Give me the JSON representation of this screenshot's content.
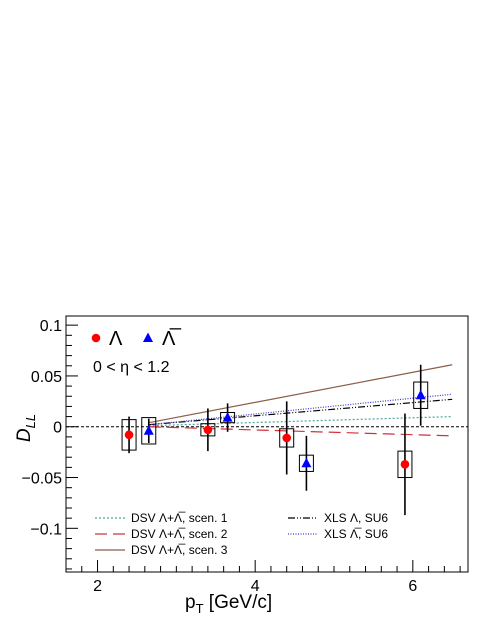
{
  "chart_data": {
    "type": "scatter",
    "title": "",
    "xlabel": "p_T [GeV/c]",
    "xlabel_main": "p",
    "xlabel_sub": "T",
    "xlabel_rest": " [GeV/c]",
    "ylabel": "D_LL",
    "ylabel_main": "D",
    "ylabel_sub": "LL",
    "xlim": [
      1.6,
      6.7
    ],
    "ylim": [
      -0.143,
      0.109
    ],
    "xticks": [
      {
        "v": 2,
        "label": "2"
      },
      {
        "v": 4,
        "label": "4"
      },
      {
        "v": 6,
        "label": "6"
      }
    ],
    "yticks": [
      {
        "v": 0.1,
        "label": "0.1"
      },
      {
        "v": 0.05,
        "label": "0.05"
      },
      {
        "v": 0,
        "label": "0"
      },
      {
        "v": -0.05,
        "label": "−0.05"
      },
      {
        "v": -0.1,
        "label": "−0.1"
      }
    ],
    "zero_line": true,
    "annotation": "0 < η < 1.2",
    "series": [
      {
        "name": "Λ",
        "marker": "circle",
        "color": "#ff0000",
        "points": [
          {
            "x": 2.4,
            "y": -0.008,
            "err": 0.018,
            "sys": 0.015
          },
          {
            "x": 3.4,
            "y": -0.003,
            "err": 0.021,
            "sys": 0.006
          },
          {
            "x": 4.4,
            "y": -0.011,
            "err": 0.036,
            "sys": 0.009
          },
          {
            "x": 5.9,
            "y": -0.037,
            "err": 0.05,
            "sys": 0.013
          }
        ]
      },
      {
        "name": "Λ̅",
        "marker": "triangle",
        "color": "#0000ff",
        "points": [
          {
            "x": 2.65,
            "y": -0.004,
            "err": 0.012,
            "sys": 0.013
          },
          {
            "x": 3.65,
            "y": 0.009,
            "err": 0.014,
            "sys": 0.005
          },
          {
            "x": 4.65,
            "y": -0.036,
            "err": 0.027,
            "sys": 0.008
          },
          {
            "x": 6.1,
            "y": 0.031,
            "err": 0.03,
            "sys": 0.013
          }
        ]
      }
    ],
    "curves": [
      {
        "name": "DSV Λ+Λ̅, scen. 1",
        "color": "#4aa89c",
        "dash": "2,2",
        "x": [
          2.65,
          6.5
        ],
        "y": [
          0.001,
          0.01
        ]
      },
      {
        "name": "DSV Λ+Λ̅, scen. 2",
        "color": "#d4303c",
        "dash": "12,6",
        "x": [
          2.65,
          6.5
        ],
        "y": [
          0.0,
          -0.009
        ]
      },
      {
        "name": "DSV Λ+Λ̅, scen. 3",
        "color": "#8b5e4a",
        "dash": "",
        "x": [
          2.65,
          6.5
        ],
        "y": [
          0.004,
          0.061
        ]
      },
      {
        "name": "XLS Λ, SU6",
        "color": "#000000",
        "dash": "7,2,1,2,1,2",
        "x": [
          2.65,
          6.5
        ],
        "y": [
          0.002,
          0.027
        ]
      },
      {
        "name": "XLS Λ̅, SU6",
        "color": "#3a3ad0",
        "dash": "1,1.5",
        "x": [
          2.65,
          6.5
        ],
        "y": [
          0.002,
          0.032
        ]
      }
    ],
    "legend_top": [
      {
        "label": "Λ",
        "marker": "circle",
        "color": "#ff0000"
      },
      {
        "label": "Λ̅",
        "marker": "triangle",
        "color": "#0000ff"
      }
    ],
    "legend_bottom": [
      {
        "label": "DSV Λ+Λ̅, scen. 1",
        "color": "#4aa89c",
        "dash": "2,2"
      },
      {
        "label": "DSV Λ+Λ̅, scen. 2",
        "color": "#d4303c",
        "dash": "12,6"
      },
      {
        "label": "DSV Λ+Λ̅, scen. 3",
        "color": "#8b5e4a",
        "dash": ""
      },
      {
        "label": "XLS Λ, SU6",
        "color": "#000000",
        "dash": "7,2,1,2,1,2"
      },
      {
        "label": "XLS Λ̅, SU6",
        "color": "#3a3ad0",
        "dash": "1,1.5"
      }
    ]
  }
}
